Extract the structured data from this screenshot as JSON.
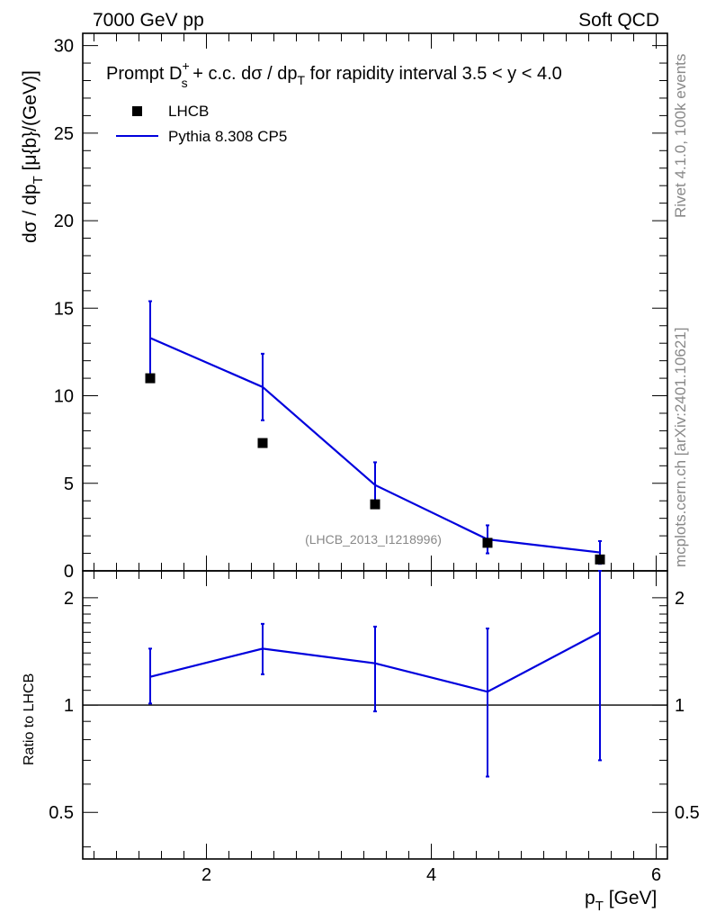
{
  "header": {
    "left": "7000 GeV pp",
    "right": "Soft QCD"
  },
  "side_labels": {
    "rivet": "Rivet 4.1.0,  100k events",
    "mcplots": "mcplots.cern.ch [arXiv:2401.10621]"
  },
  "colors": {
    "mc": "#0000dd",
    "data": "#000000"
  },
  "chart_data": [
    {
      "type": "scatter",
      "panel": "main",
      "title": "Prompt D_s^+ + c.c.  dσ / dp_T for rapidity interval 3.5 < y < 4.0",
      "title_parts": {
        "lead": "Prompt D",
        "sup": "+",
        "sub": "s",
        "mid": " + c.c.  dσ / dp",
        "sub2": "T",
        "tail": " for rapidity interval 3.5 < y < 4.0"
      },
      "ylabel_parts": {
        "lead": "dσ / dp",
        "sub": "T",
        "tail": " [μ{b}/(GeV)]"
      },
      "xlim": [
        0.9,
        6.1
      ],
      "ylim": [
        0,
        30.7
      ],
      "yticks": [
        0,
        5,
        10,
        15,
        20,
        25,
        30
      ],
      "ytick_labels": [
        "0",
        "5",
        "10",
        "15",
        "20",
        "25",
        "30"
      ],
      "legend": [
        "LHCB",
        "Pythia 8.308 CP5"
      ],
      "analysis_id": "(LHCB_2013_I1218996)",
      "series": [
        {
          "name": "LHCB",
          "kind": "data",
          "x": [
            1.5,
            2.5,
            3.5,
            4.5,
            5.5
          ],
          "y": [
            11.0,
            7.3,
            3.8,
            1.6,
            0.65
          ]
        },
        {
          "name": "Pythia 8.308 CP5",
          "kind": "mc",
          "x": [
            1.5,
            2.5,
            3.5,
            4.5,
            5.5
          ],
          "y": [
            13.3,
            10.5,
            4.9,
            1.8,
            1.05
          ],
          "yerr_low": [
            11.2,
            8.6,
            3.6,
            1.0,
            0.4
          ],
          "yerr_high": [
            15.4,
            12.4,
            6.2,
            2.6,
            1.7
          ]
        }
      ]
    },
    {
      "type": "line",
      "panel": "ratio",
      "ylabel": "Ratio to LHCB",
      "xlabel_parts": {
        "lead": "p",
        "sub": "T",
        "tail": " [GeV]"
      },
      "scale": "log",
      "xlim": [
        0.9,
        6.1
      ],
      "ylim": [
        0.37,
        2.38
      ],
      "xticks": [
        2,
        4,
        6
      ],
      "xtick_labels": [
        "2",
        "4",
        "6"
      ],
      "yticks": [
        0.5,
        1,
        2
      ],
      "ytick_labels": [
        "0.5",
        "1",
        "2"
      ],
      "reference_line": 1,
      "series": [
        {
          "name": "Pythia 8.308 CP5 / LHCB",
          "x": [
            1.5,
            2.5,
            3.5,
            4.5,
            5.5
          ],
          "y": [
            1.2,
            1.44,
            1.31,
            1.09,
            1.6
          ],
          "yerr_low": [
            1.01,
            1.22,
            0.96,
            0.63,
            0.7
          ],
          "yerr_high": [
            1.44,
            1.69,
            1.66,
            1.64,
            2.38
          ]
        }
      ]
    }
  ]
}
